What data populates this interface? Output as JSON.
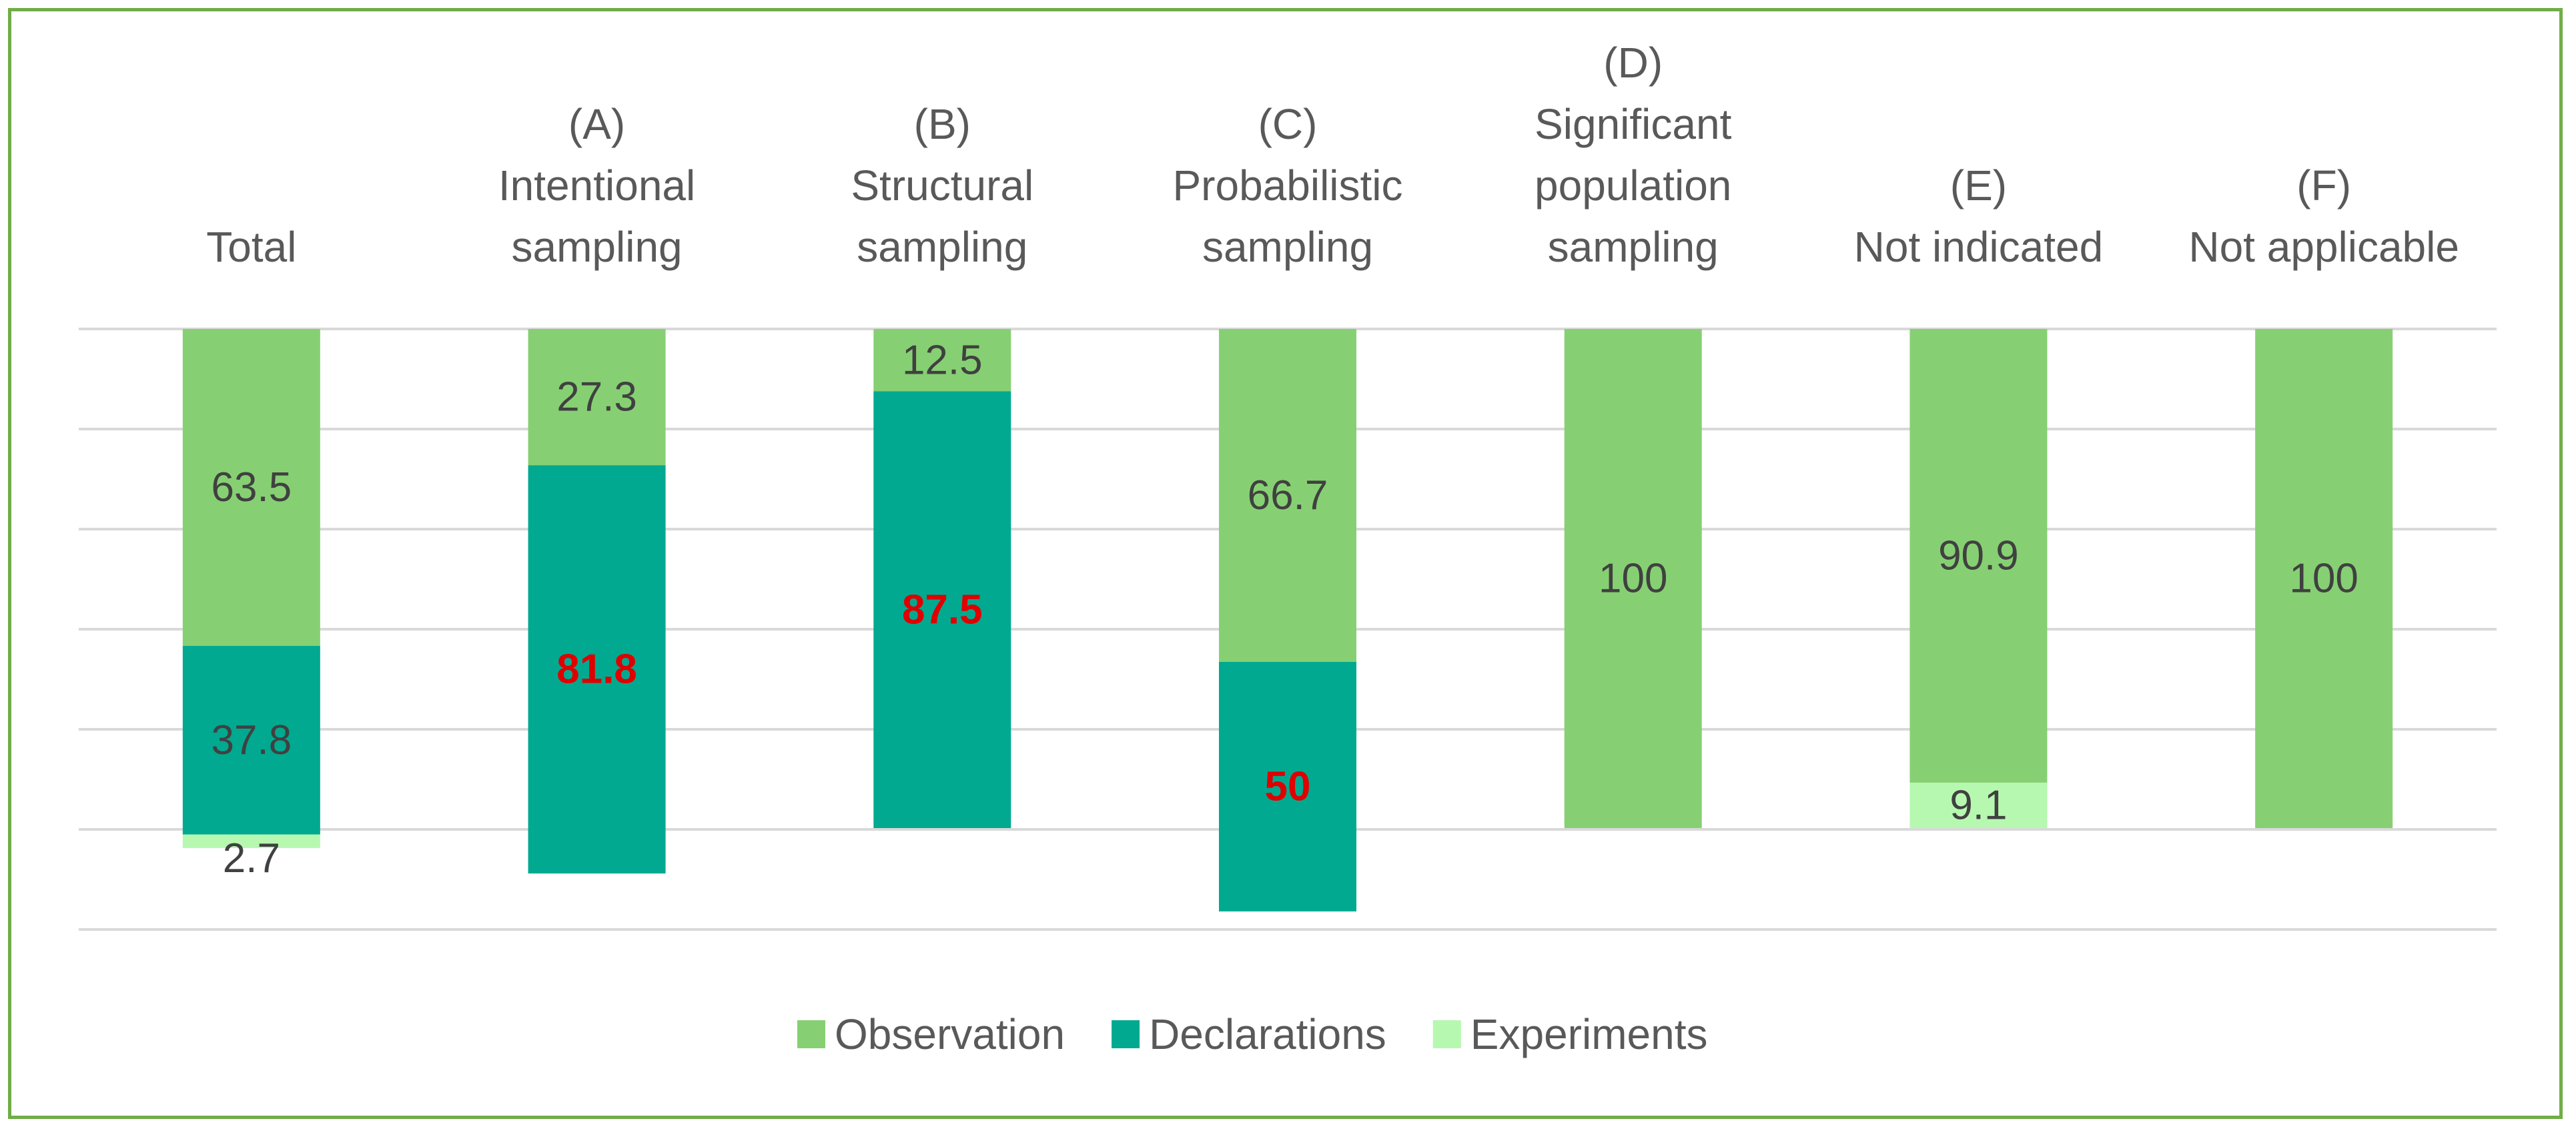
{
  "chart_data": {
    "type": "bar",
    "stacked": true,
    "categories": [
      [
        "Total"
      ],
      [
        "(A)",
        "Intentional",
        "sampling"
      ],
      [
        "(B)",
        "Structural",
        "sampling"
      ],
      [
        "(C)",
        "Probabilistic",
        "sampling"
      ],
      [
        "(D)",
        "Significant",
        "population",
        "sampling"
      ],
      [
        "(E)",
        "Not indicated"
      ],
      [
        "(F)",
        "Not applicable"
      ]
    ],
    "series": [
      {
        "name": "Observation",
        "color": "#86d073",
        "values": [
          63.5,
          27.3,
          12.5,
          66.7,
          100,
          90.9,
          100
        ],
        "labels": [
          "63.5",
          "27.3",
          "12.5",
          "66.7",
          "100",
          "90.9",
          "100"
        ],
        "highlight": [
          false,
          false,
          false,
          false,
          false,
          false,
          false
        ]
      },
      {
        "name": "Declarations",
        "color": "#00a98f",
        "values": [
          37.8,
          81.8,
          87.5,
          50,
          0,
          0,
          0
        ],
        "labels": [
          "37.8",
          "81.8",
          "87.5",
          "50",
          "",
          "",
          ""
        ],
        "highlight": [
          false,
          true,
          true,
          true,
          false,
          false,
          false
        ]
      },
      {
        "name": "Experiments",
        "color": "#b6f8b0",
        "values": [
          2.7,
          0,
          0,
          0,
          0,
          9.1,
          0
        ],
        "labels": [
          "2.7",
          "",
          "",
          "",
          "",
          "9.1",
          ""
        ],
        "highlight": [
          false,
          false,
          false,
          false,
          false,
          false,
          false
        ]
      }
    ],
    "legend_position": "bottom",
    "grid": true,
    "highlight_color": "#e00000"
  }
}
